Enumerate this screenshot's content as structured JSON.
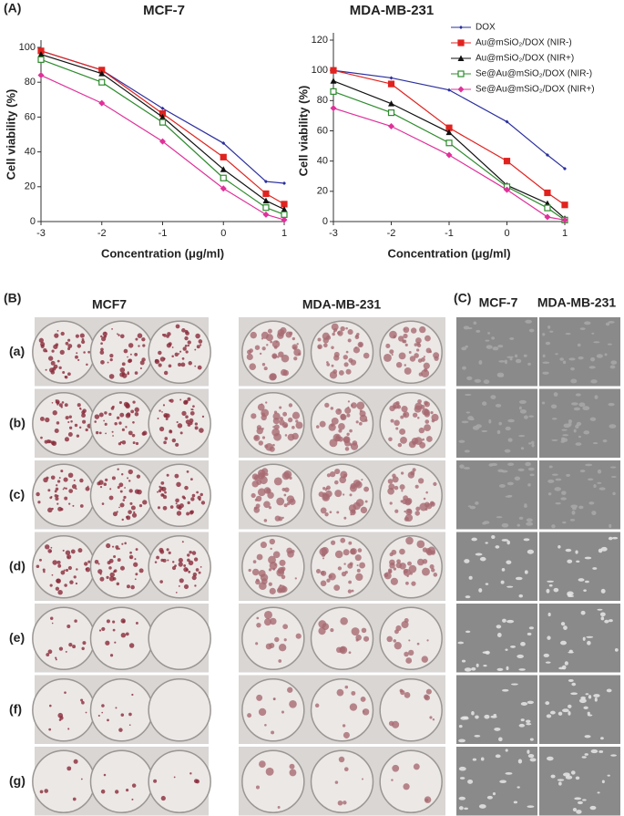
{
  "chart_data": [
    {
      "type": "line",
      "title": "MCF-7",
      "x_label": "Concentration (μg/ml)",
      "y_label": "Cell viability (%)",
      "x": [
        -3,
        -2,
        -1,
        0,
        0.7,
        1
      ],
      "xlim": [
        -3,
        1
      ],
      "xticks": [
        -3,
        -2,
        -1,
        0,
        1
      ],
      "ylim": [
        0,
        100
      ],
      "yticks": [
        0,
        20,
        40,
        60,
        80,
        100
      ],
      "series": [
        {
          "name": "DOX",
          "color": "#2b2f9e",
          "values": [
            98,
            87,
            65,
            45,
            23,
            22
          ]
        },
        {
          "name": "Au@mSiO₂/DOX (NIR-)",
          "color": "#e0231f",
          "values": [
            98,
            87,
            62,
            37,
            16,
            10
          ]
        },
        {
          "name": "Au@mSiO₂/DOX (NIR+)",
          "color": "#111111",
          "values": [
            96,
            85,
            60,
            30,
            12,
            7
          ]
        },
        {
          "name": "Se@Au@mSiO₂/DOX (NIR-)",
          "color": "#2e8b2e",
          "values": [
            93,
            80,
            57,
            25,
            8,
            4
          ]
        },
        {
          "name": "Se@Au@mSiO₂/DOX (NIR+)",
          "color": "#e0309a",
          "values": [
            84,
            68,
            46,
            19,
            4,
            1
          ]
        }
      ]
    },
    {
      "type": "line",
      "title": "MDA-MB-231",
      "x_label": "Concentration (μg/ml)",
      "y_label": "Cell viability (%)",
      "x": [
        -3,
        -2,
        -1,
        0,
        0.7,
        1
      ],
      "xlim": [
        -3,
        1
      ],
      "xticks": [
        -3,
        -2,
        -1,
        0,
        1
      ],
      "ylim": [
        0,
        120
      ],
      "yticks": [
        0,
        20,
        40,
        60,
        80,
        100,
        120
      ],
      "legend": "upper right",
      "series": [
        {
          "name": "DOX",
          "color": "#2b2f9e",
          "values": [
            100,
            95,
            87,
            66,
            44,
            35
          ]
        },
        {
          "name": "Au@mSiO₂/DOX (NIR-)",
          "color": "#e0231f",
          "values": [
            100,
            91,
            62,
            40,
            19,
            11
          ]
        },
        {
          "name": "Au@mSiO₂/DOX (NIR+)",
          "color": "#111111",
          "values": [
            93,
            78,
            59,
            24,
            12,
            2
          ]
        },
        {
          "name": "Se@Au@mSiO₂/DOX (NIR-)",
          "color": "#2e8b2e",
          "values": [
            86,
            72,
            52,
            23,
            9,
            1
          ]
        },
        {
          "name": "Se@Au@mSiO₂/DOX (NIR+)",
          "color": "#e0309a",
          "values": [
            75,
            63,
            44,
            21,
            3,
            1
          ]
        }
      ]
    }
  ],
  "panel_labels": [
    "(A)",
    "(B)",
    "(C)"
  ],
  "panel_b": {
    "columns": [
      "MCF7",
      "MDA-MB-231"
    ],
    "rows": [
      "(a)",
      "(b)",
      "(c)",
      "(d)",
      "(e)",
      "(f)",
      "(g)"
    ]
  },
  "panel_c": {
    "columns": [
      "MCF-7",
      "MDA-MB-231"
    ]
  }
}
